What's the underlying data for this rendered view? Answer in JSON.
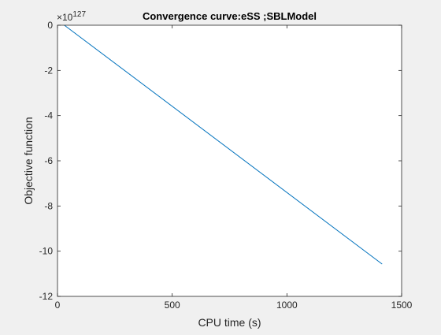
{
  "chart_data": {
    "type": "line",
    "title": "Convergence curve:eSS ;SBLModel",
    "xlabel": "CPU time (s)",
    "ylabel": "Objective function",
    "y_exponent_label": "×10",
    "y_exponent_value": "127",
    "xlim": [
      0,
      1500
    ],
    "ylim": [
      -12,
      0
    ],
    "x_ticks": [
      0,
      500,
      1000,
      1500
    ],
    "y_ticks": [
      0,
      -2,
      -4,
      -6,
      -8,
      -10,
      -12
    ],
    "x_tick_labels": [
      "0",
      "500",
      "1000",
      "1500"
    ],
    "y_tick_labels": [
      "0",
      "-2",
      "-4",
      "-6",
      "-8",
      "-10",
      "-12"
    ],
    "grid": false,
    "line_color": "#0072BD",
    "series": [
      {
        "x": [
          30,
          1415
        ],
        "y": [
          0,
          -10.57
        ]
      }
    ]
  }
}
